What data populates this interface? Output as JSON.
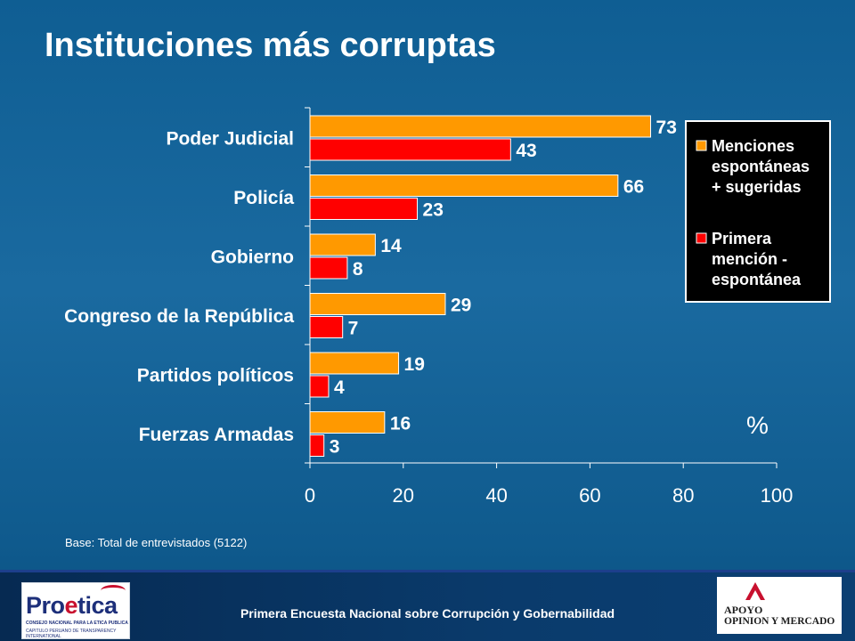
{
  "slide": {
    "title": "Instituciones más corruptas",
    "base_note": "Base: Total de entrevistados (5122)",
    "footer": "Primera Encuesta Nacional sobre Corrupción y Gobernabilidad"
  },
  "logos": {
    "left_word_a": "Pro",
    "left_word_b": "e",
    "left_word_c": "tica",
    "left_sub1": "CONSEJO NACIONAL PARA LA ETICA PUBLICA",
    "left_sub2": "CAPITULO PERUANO DE TRANSPARENCY INTERNATIONAL",
    "right_line1": "APOYO",
    "right_line2": "OPINION Y MERCADO"
  },
  "colors": {
    "series1": "#ff9900",
    "series2": "#ff0000",
    "legend_bg": "#000000"
  },
  "chart_data": {
    "type": "bar",
    "orientation": "horizontal",
    "categories": [
      "Poder Judicial",
      "Policía",
      "Gobierno",
      "Congreso de la República",
      "Partidos políticos",
      "Fuerzas Armadas"
    ],
    "series": [
      {
        "name": "Menciones espontáneas + sugeridas",
        "legend_lines": [
          "Menciones",
          "espontáneas",
          "+ sugeridas"
        ],
        "values": [
          73,
          66,
          14,
          29,
          19,
          16
        ]
      },
      {
        "name": "Primera mención - espontánea",
        "legend_lines": [
          "Primera",
          "mención -",
          "espontánea"
        ],
        "values": [
          43,
          23,
          8,
          7,
          4,
          3
        ]
      }
    ],
    "xlim": [
      0,
      100
    ],
    "xticks": [
      0,
      20,
      40,
      60,
      80,
      100
    ],
    "unit_label": "%",
    "legend_position": "top-right",
    "grid": false
  }
}
